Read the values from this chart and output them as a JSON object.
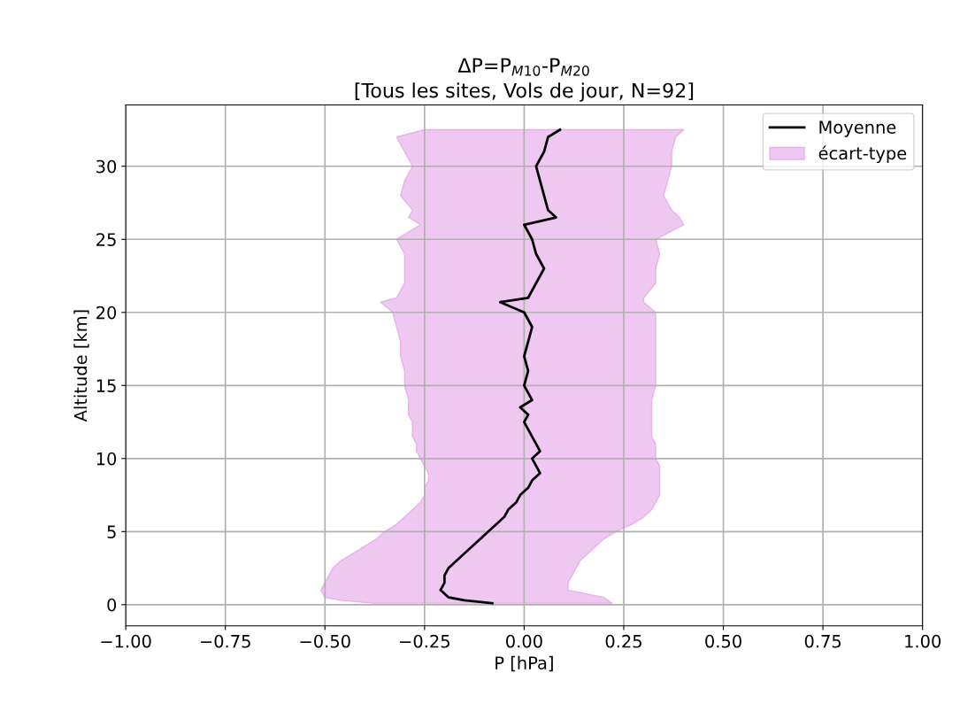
{
  "chart_data": {
    "type": "line",
    "orientation": "horizontal",
    "title": "ΔP=P$_{M10}$-P$_{M20}$\n[Tous les sites, Vols de jour, N=92]",
    "xlabel": "P [hPa]",
    "ylabel": "Altitude [km]",
    "annotations": [
      "écart-type"
    ],
    "xlim": [
      -1,
      1
    ],
    "xticks": [
      {
        "value": -1,
        "label": "−1.00"
      },
      {
        "value": -0.75,
        "label": "−0.75"
      },
      {
        "value": -0.5,
        "label": "−0.50"
      },
      {
        "value": -0.25,
        "label": "−0.25"
      },
      {
        "value": 0,
        "label": "0.00"
      },
      {
        "value": 0.25,
        "label": "0.25"
      },
      {
        "value": 0.5,
        "label": "0.50"
      },
      {
        "value": 0.75,
        "label": "0.75"
      },
      {
        "value": 1,
        "label": "1.00"
      }
    ],
    "ylim": [
      -1.45,
      34.2
    ],
    "yticks": [
      0,
      5,
      10,
      15,
      20,
      25,
      30
    ],
    "grid": true,
    "legend": "top right",
    "series": [
      {
        "name": "Moyenne",
        "color": "#000000",
        "x": [
          0.1,
          0.3,
          0.5,
          1,
          1.5,
          2,
          2.5,
          3,
          3.5,
          4,
          4.5,
          5,
          5.5,
          6,
          6.5,
          7,
          7.5,
          8,
          8.5,
          9,
          9.5,
          10,
          10.5,
          11,
          11.5,
          12,
          12.5,
          13,
          13.5,
          14,
          15,
          16,
          17,
          18,
          19,
          20,
          20.7,
          21,
          22,
          23,
          24,
          25,
          26,
          26.5,
          27,
          28,
          29,
          30,
          31,
          32,
          32.5
        ],
        "values": [
          -0.08,
          -0.15,
          -0.19,
          -0.21,
          -0.2,
          -0.2,
          -0.19,
          -0.17,
          -0.15,
          -0.13,
          -0.11,
          -0.09,
          -0.07,
          -0.05,
          -0.04,
          -0.02,
          -0.01,
          0.01,
          0.02,
          0.04,
          0.03,
          0.02,
          0.04,
          0.03,
          0.02,
          0.01,
          0.0,
          0.01,
          -0.01,
          0.02,
          0.0,
          0.01,
          0.0,
          0.01,
          0.02,
          0.0,
          -0.06,
          0.01,
          0.03,
          0.05,
          0.03,
          0.02,
          0.0,
          0.08,
          0.06,
          0.05,
          0.04,
          0.03,
          0.05,
          0.06,
          0.09
        ],
        "lower": [
          -0.38,
          -0.46,
          -0.5,
          -0.51,
          -0.5,
          -0.49,
          -0.48,
          -0.46,
          -0.43,
          -0.4,
          -0.37,
          -0.35,
          -0.32,
          -0.3,
          -0.28,
          -0.26,
          -0.25,
          -0.25,
          -0.24,
          -0.24,
          -0.25,
          -0.26,
          -0.27,
          -0.27,
          -0.28,
          -0.28,
          -0.28,
          -0.29,
          -0.29,
          -0.29,
          -0.3,
          -0.3,
          -0.31,
          -0.31,
          -0.32,
          -0.33,
          -0.36,
          -0.32,
          -0.3,
          -0.3,
          -0.3,
          -0.32,
          -0.26,
          -0.29,
          -0.28,
          -0.31,
          -0.3,
          -0.28,
          -0.3,
          -0.32,
          -0.25
        ],
        "upper": [
          0.22,
          0.21,
          0.2,
          0.11,
          0.11,
          0.12,
          0.13,
          0.14,
          0.16,
          0.18,
          0.2,
          0.23,
          0.27,
          0.3,
          0.32,
          0.33,
          0.34,
          0.34,
          0.34,
          0.34,
          0.34,
          0.33,
          0.33,
          0.33,
          0.32,
          0.32,
          0.32,
          0.32,
          0.32,
          0.32,
          0.33,
          0.33,
          0.33,
          0.33,
          0.33,
          0.33,
          0.3,
          0.3,
          0.33,
          0.33,
          0.34,
          0.33,
          0.4,
          0.39,
          0.37,
          0.35,
          0.36,
          0.37,
          0.37,
          0.38,
          0.4
        ]
      }
    ]
  }
}
